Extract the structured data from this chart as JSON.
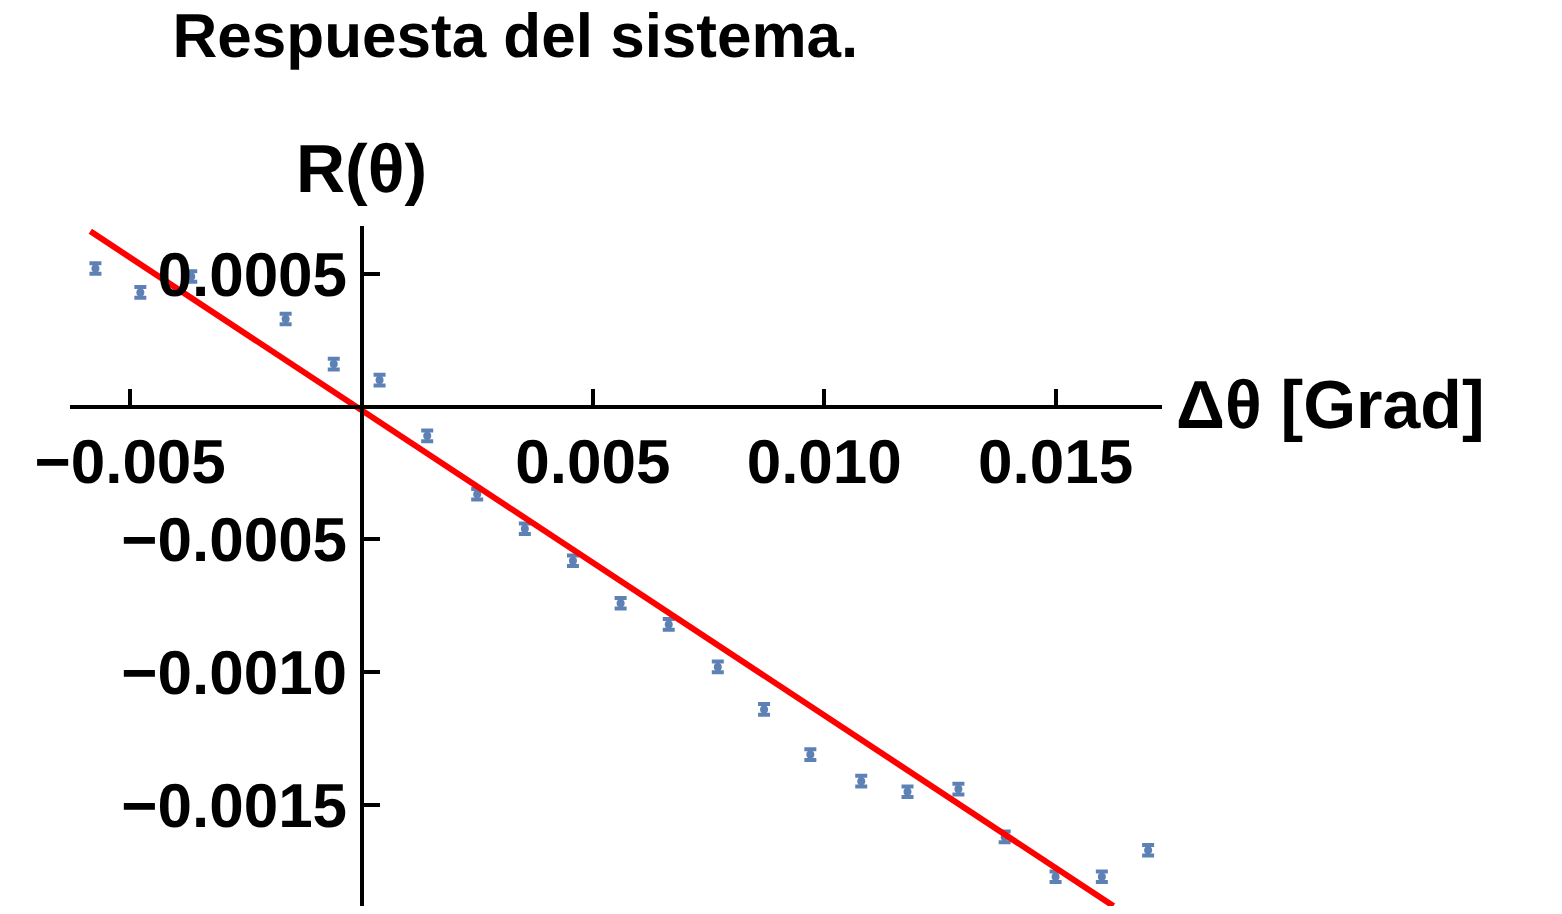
{
  "chart_data": {
    "type": "scatter",
    "title": "Respuesta del sistema.",
    "xlabel": "Δθ [Grad]",
    "ylabel": "R(θ)",
    "xlim": [
      -0.0063,
      0.0173
    ],
    "ylim": [
      -0.00188,
      0.00068
    ],
    "xticks": [
      {
        "value": -0.005,
        "label": "−0.005"
      },
      {
        "value": 0.005,
        "label": "0.005"
      },
      {
        "value": 0.01,
        "label": "0.010"
      },
      {
        "value": 0.015,
        "label": "0.015"
      }
    ],
    "yticks": [
      {
        "value": 0.0005,
        "label": "0.0005"
      },
      {
        "value": -0.0005,
        "label": "−0.0005"
      },
      {
        "value": -0.001,
        "label": "−0.0010"
      },
      {
        "value": -0.0015,
        "label": "−0.0015"
      }
    ],
    "series": [
      {
        "color": "#5e81b5",
        "x": [
          -0.00575,
          -0.00478,
          -0.00368,
          -0.00164,
          -0.0006,
          0.00039,
          0.00142,
          0.0025,
          0.00353,
          0.00457,
          0.0056,
          0.00664,
          0.0077,
          0.0087,
          0.0097,
          0.0108,
          0.0118,
          0.0129,
          0.0139,
          0.015,
          0.016,
          0.017
        ],
        "values": [
          0.00052,
          0.00043,
          0.00049,
          0.00033,
          0.00016,
          0.0001,
          -0.00011,
          -0.00033,
          -0.00046,
          -0.00058,
          -0.00074,
          -0.00082,
          -0.00098,
          -0.00114,
          -0.00131,
          -0.00141,
          -0.00145,
          -0.00144,
          -0.00162,
          -0.00177,
          -0.00177,
          -0.00167
        ],
        "errors": [
          2e-05,
          2e-05,
          2e-05,
          2e-05,
          2e-05,
          2e-05,
          2e-05,
          2e-05,
          2e-05,
          2e-05,
          2e-05,
          2e-05,
          2e-05,
          2e-05,
          2e-05,
          2e-05,
          2e-05,
          2e-05,
          2e-05,
          2e-05,
          2e-05,
          2e-05
        ]
      },
      {
        "type": "line",
        "color": "#ff0000",
        "x": [
          -0.00586,
          0.01625
        ],
        "values": [
          0.00066,
          -0.00188
        ]
      }
    ]
  }
}
